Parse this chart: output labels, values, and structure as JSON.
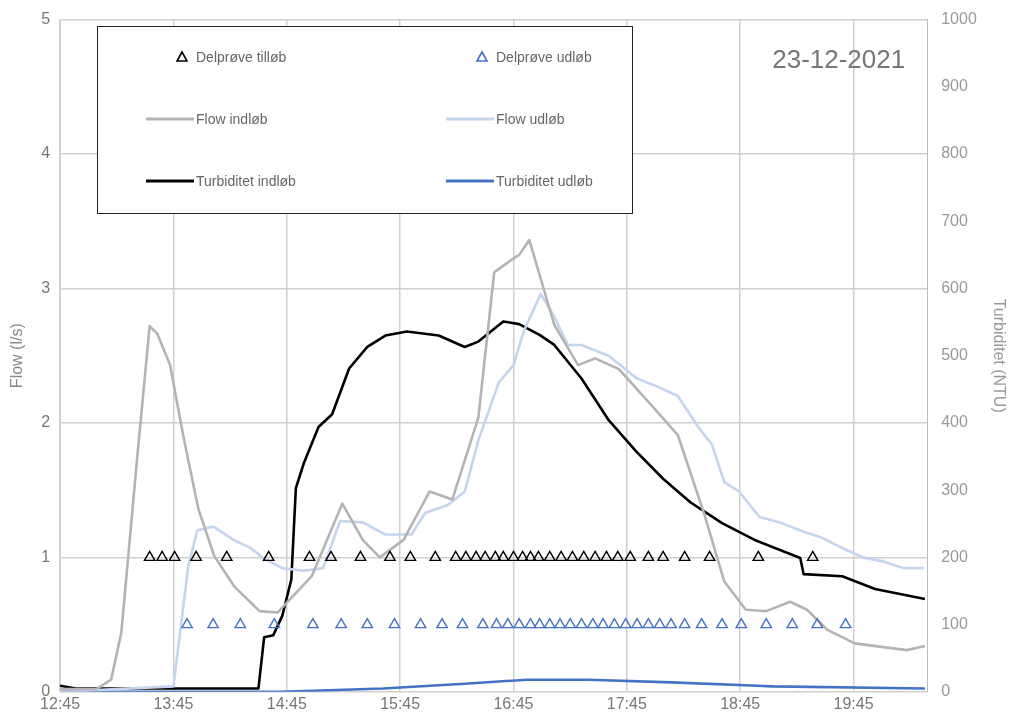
{
  "chart_data": {
    "type": "line",
    "xlabel": null,
    "ylabel": "Flow (l/s)",
    "y2label": "Turbiditet (NTU)",
    "annotations": [
      "23-12-2021"
    ],
    "xlim": [
      12.75,
      20.4
    ],
    "xticks": [
      {
        "value": 12.75,
        "label": "12:45"
      },
      {
        "value": 13.75,
        "label": "13:45"
      },
      {
        "value": 14.75,
        "label": "14:45"
      },
      {
        "value": 15.75,
        "label": "15:45"
      },
      {
        "value": 16.75,
        "label": "16:45"
      },
      {
        "value": 17.75,
        "label": "17:45"
      },
      {
        "value": 18.75,
        "label": "18:45"
      },
      {
        "value": 19.75,
        "label": "19:45"
      }
    ],
    "ylim": [
      0,
      5
    ],
    "yticks": [
      0,
      1,
      2,
      3,
      4,
      5
    ],
    "y2lim": [
      0,
      1000
    ],
    "y2ticks": [
      0,
      100,
      200,
      300,
      400,
      500,
      600,
      700,
      800,
      900,
      1000
    ],
    "grid": true,
    "legend": "top left",
    "marker": "none",
    "line_style": "solid",
    "series": [
      {
        "name": "Delprøve tilløb",
        "type": "scatter",
        "marker": "triangle",
        "color": "#000000",
        "x": [
          13.54,
          13.65,
          13.76,
          13.95,
          14.22,
          14.59,
          14.95,
          15.14,
          15.4,
          15.66,
          15.84,
          16.06,
          16.24,
          16.33,
          16.42,
          16.5,
          16.59,
          16.66,
          16.75,
          16.83,
          16.9,
          16.97,
          17.07,
          17.17,
          17.27,
          17.37,
          17.47,
          17.57,
          17.67,
          17.78,
          17.94,
          18.07,
          18.26,
          18.48,
          18.91,
          19.39
        ],
        "values": [
          1,
          1,
          1,
          1,
          1,
          1,
          1,
          1,
          1,
          1,
          1,
          1,
          1,
          1,
          1,
          1,
          1,
          1,
          1,
          1,
          1,
          1,
          1,
          1,
          1,
          1,
          1,
          1,
          1,
          1,
          1,
          1,
          1,
          1,
          1,
          1
        ]
      },
      {
        "name": "Delprøve udløb",
        "type": "scatter",
        "marker": "triangle",
        "color": "#4472c4",
        "x": [
          13.87,
          14.1,
          14.34,
          14.64,
          14.98,
          15.23,
          15.46,
          15.7,
          15.93,
          16.12,
          16.3,
          16.48,
          16.6,
          16.7,
          16.8,
          16.9,
          16.98,
          17.07,
          17.16,
          17.25,
          17.35,
          17.45,
          17.54,
          17.64,
          17.74,
          17.84,
          17.94,
          18.04,
          18.14,
          18.26,
          18.41,
          18.59,
          18.76,
          18.98,
          19.21,
          19.43,
          19.68
        ],
        "values": [
          0.5,
          0.5,
          0.5,
          0.5,
          0.5,
          0.5,
          0.5,
          0.5,
          0.5,
          0.5,
          0.5,
          0.5,
          0.5,
          0.5,
          0.5,
          0.5,
          0.5,
          0.5,
          0.5,
          0.5,
          0.5,
          0.5,
          0.5,
          0.5,
          0.5,
          0.5,
          0.5,
          0.5,
          0.5,
          0.5,
          0.5,
          0.5,
          0.5,
          0.5,
          0.5,
          0.5,
          0.5
        ]
      },
      {
        "name": "Flow indløb",
        "color": "#b4b4b4",
        "x": [
          12.75,
          13.07,
          13.2,
          13.29,
          13.43,
          13.54,
          13.61,
          13.72,
          13.84,
          13.97,
          14.11,
          14.29,
          14.51,
          14.67,
          14.97,
          15.24,
          15.42,
          15.57,
          15.78,
          16.01,
          16.21,
          16.44,
          16.58,
          16.76,
          16.8,
          16.89,
          17.11,
          17.32,
          17.47,
          17.68,
          17.98,
          18.2,
          18.43,
          18.61,
          18.8,
          18.98,
          19.19,
          19.34,
          19.52,
          19.76,
          20.22,
          20.38
        ],
        "values": [
          0.02,
          0.02,
          0.09,
          0.44,
          1.74,
          2.72,
          2.66,
          2.43,
          1.89,
          1.36,
          1.01,
          0.78,
          0.6,
          0.59,
          0.86,
          1.4,
          1.13,
          1.0,
          1.13,
          1.49,
          1.43,
          2.04,
          3.12,
          3.23,
          3.25,
          3.36,
          2.73,
          2.43,
          2.48,
          2.4,
          2.12,
          1.91,
          1.33,
          0.82,
          0.61,
          0.6,
          0.67,
          0.61,
          0.46,
          0.36,
          0.31,
          0.34
        ]
      },
      {
        "name": "Flow udløb",
        "color": "#c5d5ee",
        "x": [
          12.75,
          13.75,
          13.88,
          13.96,
          14.1,
          14.28,
          14.43,
          14.55,
          14.71,
          14.9,
          15.07,
          15.22,
          15.42,
          15.62,
          15.85,
          15.97,
          16.17,
          16.32,
          16.44,
          16.62,
          16.75,
          16.84,
          16.99,
          17.11,
          17.23,
          17.35,
          17.59,
          17.84,
          18.02,
          18.2,
          18.38,
          18.5,
          18.61,
          18.74,
          18.92,
          19.1,
          19.28,
          19.46,
          19.65,
          19.83,
          20.01,
          20.19,
          20.37
        ],
        "values": [
          0,
          0.04,
          0.93,
          1.2,
          1.23,
          1.13,
          1.07,
          0.99,
          0.92,
          0.9,
          0.92,
          1.27,
          1.26,
          1.17,
          1.17,
          1.33,
          1.39,
          1.49,
          1.87,
          2.3,
          2.43,
          2.68,
          2.96,
          2.79,
          2.58,
          2.58,
          2.5,
          2.33,
          2.27,
          2.2,
          1.97,
          1.84,
          1.56,
          1.49,
          1.3,
          1.26,
          1.2,
          1.15,
          1.07,
          1.0,
          0.97,
          0.92,
          0.92
        ]
      },
      {
        "name": "Turbiditet indløb",
        "axis": "y2",
        "color": "#000000",
        "x": [
          12.75,
          12.89,
          14.5,
          14.55,
          14.63,
          14.71,
          14.79,
          14.83,
          14.9,
          15.03,
          15.15,
          15.3,
          15.46,
          15.62,
          15.81,
          16.09,
          16.32,
          16.44,
          16.66,
          16.8,
          16.98,
          17.11,
          17.35,
          17.59,
          17.83,
          18.07,
          18.31,
          18.59,
          18.89,
          19.28,
          19.31,
          19.65,
          19.94,
          20.38
        ],
        "values": [
          9,
          5,
          5,
          81,
          84,
          113,
          167,
          303,
          340,
          394,
          413,
          481,
          513,
          530,
          536,
          530,
          513,
          521,
          551,
          547,
          531,
          516,
          466,
          404,
          358,
          317,
          282,
          251,
          225,
          199,
          175,
          172,
          153,
          138
        ]
      },
      {
        "name": "Turbiditet udløb",
        "axis": "y2",
        "color": "#4472c4",
        "x": [
          12.75,
          14.7,
          15.6,
          16.32,
          16.87,
          17.41,
          18.14,
          19.04,
          20.38
        ],
        "values": [
          0,
          0,
          5,
          12,
          18,
          18,
          14,
          8,
          5
        ]
      }
    ]
  }
}
